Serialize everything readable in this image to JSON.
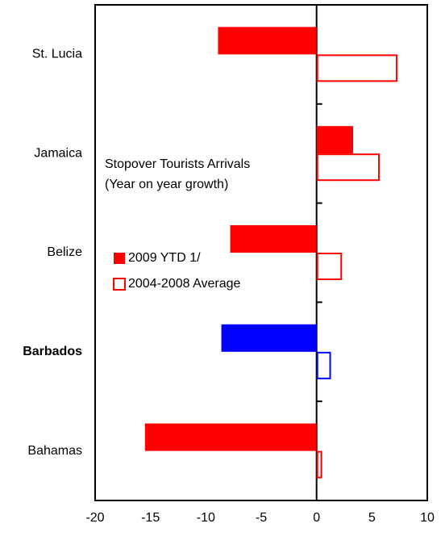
{
  "chart_data": {
    "type": "hbar",
    "annotation": [
      "Stopover Tourists Arrivals",
      "(Year on year growth)"
    ],
    "categories": [
      "St. Lucia",
      "Jamaica",
      "Belize",
      "Barbados",
      "Bahamas"
    ],
    "series": [
      {
        "name": "2009 YTD 1/",
        "color": "#ff0000",
        "fill": true,
        "values": [
          -8.9,
          3.3,
          -7.8,
          -8.6,
          -15.5
        ]
      },
      {
        "name": "2004-2008 Average",
        "color": "#ff0000",
        "fill": false,
        "values": [
          7.3,
          5.7,
          2.3,
          1.3,
          0.5
        ]
      }
    ],
    "highlight": {
      "index": 3,
      "color": "#0000ff",
      "bold": true
    },
    "xlim": [
      -20,
      10
    ],
    "xticks": [
      -20,
      -15,
      -10,
      -5,
      0,
      5,
      10
    ]
  }
}
